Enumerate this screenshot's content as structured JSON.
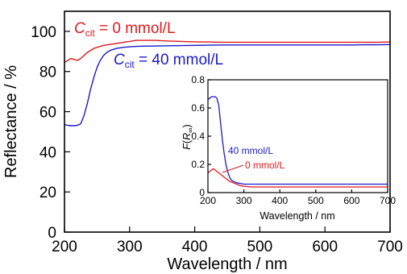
{
  "chart_data": [
    {
      "type": "line",
      "xlabel": "Wavelength / nm",
      "ylabel": "Reflectance / %",
      "xlim": [
        200,
        700
      ],
      "ylim": [
        0,
        110
      ],
      "xticks": [
        200,
        300,
        400,
        500,
        600,
        700
      ],
      "yticks": [
        0,
        20,
        40,
        60,
        80,
        100
      ],
      "grid": false,
      "annotations": [
        {
          "id": "cit0",
          "text_main": "C",
          "text_sub": "cit",
          "text_rest": " = 0 mmol/L",
          "color": "#e0191c"
        },
        {
          "id": "cit40",
          "text_main": "C",
          "text_sub": "cit",
          "text_rest": " = 40 mmol/L",
          "color": "#1a1acc"
        }
      ],
      "series": [
        {
          "color": "#e0191c",
          "x": [
            200,
            205,
            210,
            215,
            220,
            225,
            230,
            235,
            240,
            245,
            250,
            255,
            260,
            270,
            280,
            290,
            300,
            310,
            320,
            330,
            340,
            350,
            360,
            380,
            400,
            420,
            440,
            460,
            480,
            500,
            520,
            540,
            560,
            580,
            600,
            620,
            640,
            660,
            680,
            700
          ],
          "y": [
            84.5,
            85.5,
            86.5,
            86.0,
            85.5,
            86.5,
            88.0,
            89.5,
            90.5,
            91.5,
            92.0,
            92.5,
            93.0,
            93.5,
            94.0,
            94.5,
            95.0,
            95.5,
            95.5,
            95.5,
            95.5,
            95.3,
            95.2,
            95.0,
            94.8,
            94.7,
            94.6,
            94.6,
            94.6,
            94.6,
            94.6,
            94.6,
            94.6,
            94.6,
            94.6,
            94.6,
            94.6,
            94.6,
            94.6,
            94.7
          ]
        },
        {
          "color": "#1a1acc",
          "x": [
            200,
            205,
            210,
            215,
            220,
            225,
            230,
            235,
            240,
            245,
            250,
            255,
            260,
            265,
            270,
            275,
            280,
            290,
            300,
            310,
            320,
            340,
            360,
            380,
            400,
            420,
            440,
            460,
            480,
            500,
            520,
            540,
            560,
            580,
            600,
            620,
            640,
            660,
            680,
            700
          ],
          "y": [
            53.5,
            53.2,
            53.0,
            53.0,
            53.2,
            54.0,
            58.0,
            64.0,
            71.0,
            77.0,
            82.0,
            85.5,
            88.0,
            89.5,
            90.5,
            91.0,
            91.5,
            92.0,
            92.3,
            92.5,
            92.6,
            92.7,
            92.8,
            92.9,
            93.0,
            93.1,
            93.2,
            93.2,
            93.2,
            93.2,
            93.2,
            93.2,
            93.2,
            93.2,
            93.2,
            93.2,
            93.2,
            93.3,
            93.3,
            93.4
          ]
        }
      ]
    },
    {
      "type": "line",
      "xlabel": "Wavelength / nm",
      "ylabel_main": "F",
      "ylabel_open": "(",
      "ylabel_R": "R",
      "ylabel_sub": "∞",
      "ylabel_close": ")",
      "xlim": [
        200,
        700
      ],
      "ylim": [
        0,
        0.8
      ],
      "xticks": [
        200,
        300,
        400,
        500,
        600,
        700
      ],
      "yticks": [
        0,
        0.2,
        0.4,
        0.6,
        0.8
      ],
      "ytick_labels": [
        "0",
        "0.2",
        "0.4",
        "0.6",
        "0.8"
      ],
      "grid": false,
      "annotations": [
        {
          "id": "inset40",
          "text": "40 mmol/L",
          "color": "#1a1acc"
        },
        {
          "id": "inset0",
          "text": "0 mmol/L",
          "color": "#e0191c"
        }
      ],
      "series": [
        {
          "color": "#1a1acc",
          "x": [
            200,
            205,
            210,
            215,
            220,
            225,
            230,
            235,
            240,
            245,
            250,
            255,
            260,
            265,
            270,
            275,
            280,
            290,
            300,
            320,
            340,
            360,
            400,
            450,
            500,
            550,
            600,
            650,
            700
          ],
          "y": [
            0.66,
            0.67,
            0.68,
            0.68,
            0.68,
            0.67,
            0.62,
            0.5,
            0.38,
            0.28,
            0.2,
            0.15,
            0.11,
            0.09,
            0.08,
            0.075,
            0.07,
            0.065,
            0.06,
            0.06,
            0.06,
            0.06,
            0.06,
            0.06,
            0.06,
            0.06,
            0.06,
            0.06,
            0.06
          ]
        },
        {
          "color": "#e0191c",
          "x": [
            200,
            205,
            210,
            215,
            220,
            225,
            230,
            235,
            240,
            250,
            260,
            270,
            280,
            290,
            300,
            320,
            340,
            360,
            400,
            450,
            500,
            550,
            600,
            650,
            700
          ],
          "y": [
            0.14,
            0.15,
            0.16,
            0.17,
            0.16,
            0.15,
            0.14,
            0.13,
            0.12,
            0.1,
            0.08,
            0.07,
            0.06,
            0.05,
            0.045,
            0.04,
            0.04,
            0.04,
            0.04,
            0.04,
            0.04,
            0.04,
            0.04,
            0.04,
            0.04
          ]
        }
      ]
    }
  ]
}
